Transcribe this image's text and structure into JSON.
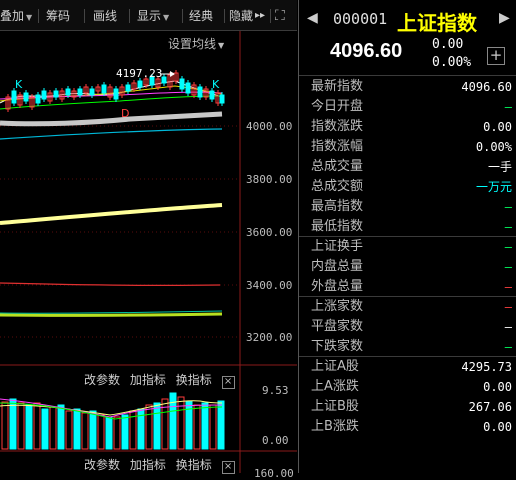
{
  "toolbar": {
    "items": [
      {
        "label": "叠加",
        "caret": "▼"
      },
      {
        "label": "筹码"
      },
      {
        "label": "画线"
      },
      {
        "label": "显示",
        "caret": "▼"
      },
      {
        "label": "经典"
      },
      {
        "label": "隐藏"
      }
    ],
    "more_glyph": "▸▸",
    "expand_glyph": "⛶"
  },
  "chart": {
    "settings_label": "设置均线",
    "settings_caret": "▼",
    "high_label": "4197.23",
    "k_markers": [
      "K",
      "K"
    ],
    "d_marker": "D",
    "y_ticks": [
      "4000.00",
      "3800.00",
      "3600.00",
      "3400.00",
      "3200.00"
    ],
    "colors": {
      "ma5": "#ffffff",
      "ma10": "#e0e000",
      "ma20": "#ff40ff",
      "ma60": "#00ff00",
      "ma120": "#00c0ff",
      "up": "#ff3c3c",
      "down": "#00ffff",
      "flat": "#cccccc"
    }
  },
  "sub_panel_1": {
    "labels": [
      "改参数",
      "加指标",
      "换指标"
    ],
    "close_glyph": "×",
    "y_ticks": [
      "9.53",
      "0.00"
    ]
  },
  "sub_panel_2": {
    "labels": [
      "改参数",
      "加指标",
      "换指标"
    ],
    "close_glyph": "×",
    "y_tick_partial": "160.00"
  },
  "index_panel": {
    "nav_left": "◀",
    "nav_right": "▶",
    "code": "000001",
    "name": "上证指数",
    "price": "4096.60",
    "change": "0.00",
    "change_pct": "0.00%",
    "add_glyph": "+",
    "rows": [
      {
        "label": "最新指数",
        "value": "4096.60",
        "color": "#ffffff"
      },
      {
        "label": "今日开盘",
        "value": "—",
        "color": "#00ff60"
      },
      {
        "label": "指数涨跌",
        "value": "0.00",
        "color": "#ffffff"
      },
      {
        "label": "指数涨幅",
        "value": "0.00%",
        "color": "#ffffff"
      },
      {
        "label": "总成交量",
        "value": "一手",
        "color": "#ffffff"
      },
      {
        "label": "总成交额",
        "value": "一万元",
        "color": "#00ffff"
      },
      {
        "label": "最高指数",
        "value": "—",
        "color": "#00ff60"
      },
      {
        "label": "最低指数",
        "value": "—",
        "color": "#00ff60"
      },
      {
        "label": "上证换手",
        "value": "—",
        "color": "#00ff60"
      },
      {
        "label": "内盘总量",
        "value": "—",
        "color": "#00ff60"
      },
      {
        "label": "外盘总量",
        "value": "—",
        "color": "#ff4040"
      },
      {
        "label": "上涨家数",
        "value": "—",
        "color": "#ff4040"
      },
      {
        "label": "平盘家数",
        "value": "—",
        "color": "#ffffff"
      },
      {
        "label": "下跌家数",
        "value": "—",
        "color": "#00ff60"
      },
      {
        "label": "上证A股",
        "value": "4295.73",
        "color": "#ffffff"
      },
      {
        "label": "上A涨跌",
        "value": "0.00",
        "color": "#ffffff"
      },
      {
        "label": "上证B股",
        "value": "267.06",
        "color": "#ffffff"
      },
      {
        "label": "上B涨跌",
        "value": "0.00",
        "color": "#ffffff"
      }
    ]
  }
}
